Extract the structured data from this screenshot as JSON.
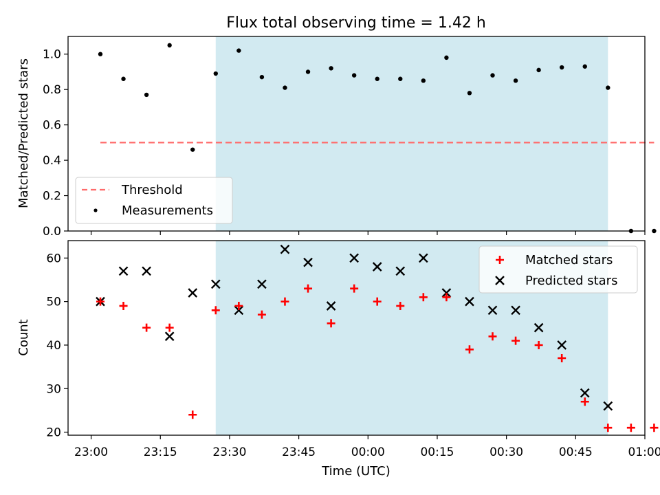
{
  "title": "Flux total observing time = 1.42 h",
  "colors": {
    "shade": "#add8e6",
    "threshold": "#ff6b6b",
    "matched": "#ff0000",
    "predicted": "#000000",
    "measurement": "#000000"
  },
  "chart_data": [
    {
      "type": "scatter",
      "ylabel": "Matched/Predicted stars",
      "ylim": [
        0,
        1.1
      ],
      "yticks": [
        "0.0",
        "0.2",
        "0.4",
        "0.6",
        "0.8",
        "1.0"
      ],
      "legend_position": "lower-left",
      "shaded_span": [
        "23:27",
        "00:52"
      ],
      "series": [
        {
          "name": "Threshold",
          "style": "dashed-line",
          "x": [
            "23:02",
            "01:02"
          ],
          "y": [
            0.5,
            0.5
          ]
        },
        {
          "name": "Measurements",
          "style": "dot",
          "x": [
            "23:02",
            "23:07",
            "23:12",
            "23:17",
            "23:22",
            "23:27",
            "23:32",
            "23:37",
            "23:42",
            "23:47",
            "23:52",
            "23:57",
            "00:02",
            "00:07",
            "00:12",
            "00:17",
            "00:22",
            "00:27",
            "00:32",
            "00:37",
            "00:42",
            "00:47",
            "00:52",
            "00:57",
            "01:02"
          ],
          "y": [
            1.0,
            0.86,
            0.77,
            1.05,
            0.46,
            0.89,
            1.02,
            0.87,
            0.81,
            0.9,
            0.92,
            0.88,
            0.86,
            0.86,
            0.85,
            0.98,
            0.78,
            0.88,
            0.85,
            0.91,
            0.925,
            0.93,
            0.81,
            0.0,
            0.0
          ]
        }
      ]
    },
    {
      "type": "scatter",
      "xlabel": "Time (UTC)",
      "ylabel": "Count",
      "ylim": [
        19.3,
        64
      ],
      "yticks": [
        "20",
        "30",
        "40",
        "50",
        "60"
      ],
      "xticks": [
        "23:00",
        "23:15",
        "23:30",
        "23:45",
        "00:00",
        "00:15",
        "00:30",
        "00:45",
        "01:00"
      ],
      "legend_position": "top-right",
      "shaded_span": [
        "23:27",
        "00:52"
      ],
      "series": [
        {
          "name": "Matched stars",
          "style": "plus",
          "x": [
            "23:02",
            "23:07",
            "23:12",
            "23:17",
            "23:22",
            "23:27",
            "23:32",
            "23:37",
            "23:42",
            "23:47",
            "23:52",
            "23:57",
            "00:02",
            "00:07",
            "00:12",
            "00:17",
            "00:22",
            "00:27",
            "00:32",
            "00:37",
            "00:42",
            "00:47",
            "00:52",
            "00:57",
            "01:02"
          ],
          "y": [
            50,
            49,
            44,
            44,
            24,
            48,
            49,
            47,
            50,
            53,
            45,
            53,
            50,
            49,
            51,
            51,
            39,
            42,
            41,
            40,
            37,
            27,
            21,
            21,
            21
          ]
        },
        {
          "name": "Predicted stars",
          "style": "x",
          "x": [
            "23:02",
            "23:07",
            "23:12",
            "23:17",
            "23:22",
            "23:27",
            "23:32",
            "23:37",
            "23:42",
            "23:47",
            "23:52",
            "23:57",
            "00:02",
            "00:07",
            "00:12",
            "00:17",
            "00:22",
            "00:27",
            "00:32",
            "00:37",
            "00:42",
            "00:47",
            "00:52"
          ],
          "y": [
            50,
            57,
            57,
            42,
            52,
            54,
            48,
            54,
            62,
            59,
            49,
            60,
            58,
            57,
            60,
            52,
            50,
            48,
            48,
            44,
            40,
            29,
            26
          ]
        }
      ]
    }
  ]
}
